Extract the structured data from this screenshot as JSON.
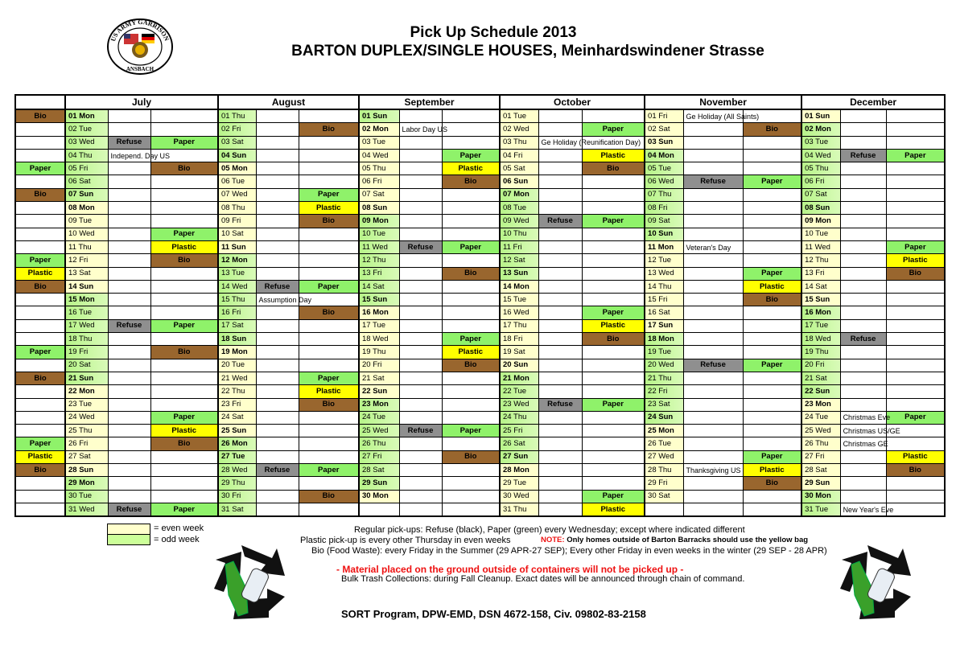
{
  "header": {
    "title": "Pick Up Schedule 2013",
    "subtitle": "BARTON DUPLEX/SINGLE HOUSES, Meinhardswindener Strasse",
    "logo_text": "US ARMY GARRISON ANSBACH"
  },
  "colors": {
    "Bio": "#99662e",
    "Paper": "#8ff26a",
    "Plastic": "#ffff00",
    "Refuse": "#8f8f8f",
    "even_week": "#ffffcc",
    "odd_week": "#ccff99"
  },
  "lead": {
    "1": "Bio",
    "5": "Paper",
    "7": "Bio",
    "12": "Paper",
    "13": "Plastic",
    "14": "Bio",
    "19": "Paper",
    "21": "Bio",
    "26": "Paper",
    "27": "Plastic",
    "28": "Bio"
  },
  "months": [
    {
      "name": "July",
      "days": [
        "01 Mon",
        "02 Tue",
        "03 Wed",
        "04 Thu",
        "05 Fri",
        "06 Sat",
        "07 Sun",
        "08 Mon",
        "09 Tue",
        "10 Wed",
        "11 Thu",
        "12 Fri",
        "13 Sat",
        "14 Sun",
        "15 Mon",
        "16 Tue",
        "17 Wed",
        "18 Thu",
        "19 Fri",
        "20 Sat",
        "21 Sun",
        "22 Mon",
        "23 Tue",
        "24 Wed",
        "25 Thu",
        "26 Fri",
        "27 Sat",
        "28 Sun",
        "29 Mon",
        "30 Tue",
        "31 Wed"
      ],
      "a": {
        "3": "Refuse",
        "17": "Refuse",
        "31": "Refuse"
      },
      "b": {
        "3": "Paper",
        "5": "Bio",
        "10": "Paper",
        "11": "Plastic",
        "12": "Bio",
        "17": "Paper",
        "19": "Bio",
        "24": "Paper",
        "25": "Plastic",
        "26": "Bio",
        "31": "Paper"
      },
      "notes": {
        "4": "Independ. Day US"
      }
    },
    {
      "name": "August",
      "days": [
        "01 Thu",
        "02 Fri",
        "03 Sat",
        "04 Sun",
        "05 Mon",
        "06 Tue",
        "07 Wed",
        "08 Thu",
        "09 Fri",
        "10 Sat",
        "11 Sun",
        "12 Mon",
        "13 Tue",
        "14 Wed",
        "15 Thu",
        "16 Fri",
        "17 Sat",
        "18 Sun",
        "19 Mon",
        "20 Tue",
        "21 Wed",
        "22 Thu",
        "23 Fri",
        "24 Sat",
        "25 Sun",
        "26 Mon",
        "27 Tue",
        "28 Wed",
        "29 Thu",
        "30 Fri",
        "31 Sat"
      ],
      "a": {
        "14": "Refuse",
        "28": "Refuse"
      },
      "b": {
        "2": "Bio",
        "7": "Paper",
        "8": "Plastic",
        "9": "Bio",
        "14": "Paper",
        "16": "Bio",
        "21": "Paper",
        "22": "Plastic",
        "23": "Bio",
        "28": "Paper",
        "30": "Bio"
      },
      "notes": {
        "15": "Assumption Day"
      }
    },
    {
      "name": "September",
      "days": [
        "01 Sun",
        "02 Mon",
        "03 Tue",
        "04 Wed",
        "05 Thu",
        "06 Fri",
        "07 Sat",
        "08 Sun",
        "09 Mon",
        "10 Tue",
        "11 Wed",
        "12 Thu",
        "13 Fri",
        "14 Sat",
        "15 Sun",
        "16 Mon",
        "17 Tue",
        "18 Wed",
        "19 Thu",
        "20 Fri",
        "21 Sat",
        "22 Sun",
        "23 Mon",
        "24 Tue",
        "25 Wed",
        "26 Thu",
        "27 Fri",
        "28 Sat",
        "29 Sun",
        "30 Mon"
      ],
      "a": {
        "11": "Refuse",
        "25": "Refuse"
      },
      "b": {
        "4": "Paper",
        "5": "Plastic",
        "6": "Bio",
        "11": "Paper",
        "13": "Bio",
        "18": "Paper",
        "19": "Plastic",
        "20": "Bio",
        "25": "Paper",
        "27": "Bio"
      },
      "notes": {
        "2": "Labor Day US"
      }
    },
    {
      "name": "October",
      "days": [
        "01 Tue",
        "02 Wed",
        "03 Thu",
        "04 Fri",
        "05 Sat",
        "06 Sun",
        "07 Mon",
        "08 Tue",
        "09 Wed",
        "10 Thu",
        "11 Fri",
        "12 Sat",
        "13 Sun",
        "14 Mon",
        "15 Tue",
        "16 Wed",
        "17 Thu",
        "18 Fri",
        "19 Sat",
        "20 Sun",
        "21 Mon",
        "22 Tue",
        "23 Wed",
        "24 Thu",
        "25 Fri",
        "26 Sat",
        "27 Sun",
        "28 Mon",
        "29 Tue",
        "30 Wed",
        "31 Thu"
      ],
      "a": {
        "9": "Refuse",
        "23": "Refuse"
      },
      "b": {
        "2": "Paper",
        "4": "Plastic",
        "5": "Bio",
        "9": "Paper",
        "16": "Paper",
        "17": "Plastic",
        "18": "Bio",
        "23": "Paper",
        "30": "Paper",
        "31": "Plastic"
      },
      "notes": {
        "3": "Ge Holiday (Reunification Day)"
      }
    },
    {
      "name": "November",
      "days": [
        "01 Fri",
        "02 Sat",
        "03 Sun",
        "04 Mon",
        "05 Tue",
        "06 Wed",
        "07 Thu",
        "08 Fri",
        "09 Sat",
        "10 Sun",
        "11 Mon",
        "12 Tue",
        "13 Wed",
        "14 Thu",
        "15 Fri",
        "16 Sat",
        "17 Sun",
        "18 Mon",
        "19 Tue",
        "20 Wed",
        "21 Thu",
        "22 Fri",
        "23 Sat",
        "24 Sun",
        "25 Mon",
        "26 Tue",
        "27 Wed",
        "28 Thu",
        "29 Fri",
        "30 Sat"
      ],
      "a": {
        "6": "Refuse",
        "20": "Refuse"
      },
      "b": {
        "2": "Bio",
        "6": "Paper",
        "13": "Paper",
        "14": "Plastic",
        "15": "Bio",
        "20": "Paper",
        "27": "Paper",
        "28": "Plastic",
        "29": "Bio"
      },
      "notes": {
        "1": "Ge Holiday (All Saints)",
        "11": "Veteran's Day",
        "28": "Thanksgiving US"
      }
    },
    {
      "name": "December",
      "days": [
        "01 Sun",
        "02 Mon",
        "03 Tue",
        "04 Wed",
        "05 Thu",
        "06 Fri",
        "07 Sat",
        "08 Sun",
        "09 Mon",
        "10 Tue",
        "11 Wed",
        "12 Thu",
        "13 Fri",
        "14 Sat",
        "15 Sun",
        "16 Mon",
        "17 Tue",
        "18 Wed",
        "19 Thu",
        "20 Fri",
        "21 Sat",
        "22 Sun",
        "23 Mon",
        "24 Tue",
        "25 Wed",
        "26 Thu",
        "27 Fri",
        "28 Sat",
        "29 Sun",
        "30 Mon",
        "31 Tue"
      ],
      "a": {
        "4": "Refuse",
        "18": "Refuse"
      },
      "b": {
        "4": "Paper",
        "11": "Paper",
        "12": "Plastic",
        "13": "Bio",
        "24": "Paper",
        "27": "Plastic",
        "28": "Bio"
      },
      "notes": {
        "24": "Christmas Eve",
        "25": "Christmas US/GE",
        "26": "Christmas GE",
        "31": "New Year's Eve"
      }
    }
  ],
  "legend": {
    "even": "= even week",
    "odd": "= odd week"
  },
  "footer": {
    "regular": "Regular pick-ups: Refuse (black), Paper (green) every Wednesday; except where indicated different",
    "plastic": "Plastic pick-up is every other Thursday in even weeks",
    "note_label": "NOTE:",
    "note_text": "Only homes outside of Barton Barracks should use the yellow bag",
    "bio": "Bio (Food Waste): every Friday in the Summer (29 APR-27 SEP); Every other Friday in even weeks  in the winter (29 SEP - 28 APR)",
    "warning": "-  Material placed on the ground outside of containers will not be picked up  -",
    "bulk": "Bulk Trash Collections: during Fall Cleanup. Exact dates will be announced through chain of command.",
    "sort": "SORT Program, DPW-EMD, DSN 4672-158, Civ. 09802-83-2158"
  }
}
